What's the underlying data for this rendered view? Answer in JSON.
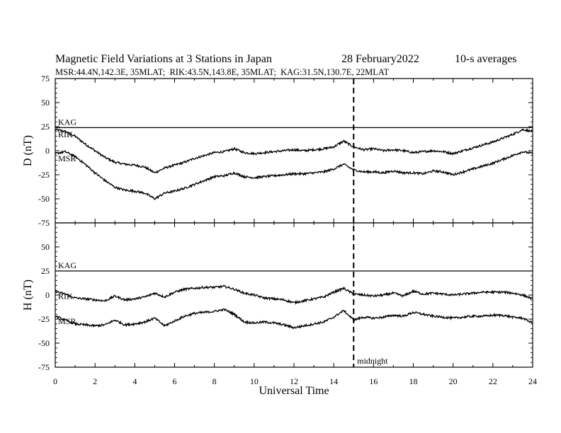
{
  "header": {
    "title": "Magnetic Field Variations at 3 Stations in Japan",
    "date": "28 February2022",
    "averaging": "10-s averages",
    "stations_line": "MSR:44.4N,142.3E, 35MLAT;  RIK:43.5N,143.8E, 35MLAT;  KAG:31.5N,130.7E, 22MLAT"
  },
  "chart_data": [
    {
      "type": "line",
      "panel": "D",
      "ylabel": "D (nT)",
      "ylim": [
        -75,
        75
      ],
      "yticks": [
        "75",
        "50",
        "25",
        "0",
        "-25",
        "-50",
        "-75"
      ],
      "xlim": [
        0,
        24
      ],
      "series": [
        {
          "name": "KAG",
          "x": [
            0,
            24
          ],
          "values": [
            24,
            24
          ]
        },
        {
          "name": "RIK",
          "x": [
            0,
            0.5,
            1,
            1.5,
            2,
            2.5,
            3,
            3.5,
            4,
            4.5,
            5,
            5.5,
            6,
            6.5,
            7,
            7.5,
            8,
            8.5,
            9,
            9.5,
            10,
            10.5,
            11,
            11.5,
            12,
            12.5,
            13,
            13.5,
            14,
            14.5,
            15,
            15.5,
            16,
            16.5,
            17,
            17.5,
            18,
            18.5,
            19,
            19.5,
            20,
            20.5,
            21,
            21.5,
            22,
            22.5,
            23,
            23.5,
            24
          ],
          "values": [
            22,
            20,
            15,
            7,
            0,
            -7,
            -12,
            -14,
            -15,
            -17,
            -23,
            -18,
            -15,
            -12,
            -8,
            -5,
            -2,
            -1,
            2,
            -2,
            -3,
            -2,
            -1,
            0,
            1,
            0,
            1,
            2,
            4,
            10,
            4,
            1,
            2,
            0,
            1,
            0,
            -2,
            -1,
            0,
            -1,
            -3,
            0,
            3,
            6,
            9,
            13,
            17,
            22,
            20
          ]
        },
        {
          "name": "MSR",
          "x": [
            0,
            0.5,
            1,
            1.5,
            2,
            2.5,
            3,
            3.5,
            4,
            4.5,
            5,
            5.5,
            6,
            6.5,
            7,
            7.5,
            8,
            8.5,
            9,
            9.5,
            10,
            10.5,
            11,
            11.5,
            12,
            12.5,
            13,
            13.5,
            14,
            14.5,
            15,
            15.5,
            16,
            16.5,
            17,
            17.5,
            18,
            18.5,
            19,
            19.5,
            20,
            20.5,
            21,
            21.5,
            22,
            22.5,
            23,
            23.5,
            24
          ],
          "values": [
            -3,
            -1,
            -6,
            -14,
            -23,
            -31,
            -38,
            -41,
            -42,
            -44,
            -50,
            -44,
            -42,
            -39,
            -35,
            -31,
            -27,
            -26,
            -23,
            -27,
            -28,
            -27,
            -26,
            -25,
            -24,
            -24,
            -23,
            -22,
            -19,
            -14,
            -20,
            -22,
            -22,
            -23,
            -21,
            -23,
            -23,
            -24,
            -21,
            -22,
            -25,
            -22,
            -19,
            -16,
            -13,
            -9,
            -5,
            -1,
            -3
          ]
        }
      ]
    },
    {
      "type": "line",
      "panel": "H",
      "ylabel": "H (nT)",
      "ylim": [
        -75,
        75
      ],
      "yticks": [
        "75",
        "50",
        "25",
        "0",
        "-25",
        "-50",
        "-75"
      ],
      "xlim": [
        0,
        24
      ],
      "xticks": [
        "0",
        "2",
        "4",
        "6",
        "8",
        "10",
        "12",
        "14",
        "16",
        "18",
        "20",
        "22",
        "24"
      ],
      "xlabel": "Universal Time",
      "annotation": {
        "x": 15,
        "label": "midnight"
      },
      "series": [
        {
          "name": "KAG",
          "x": [
            0,
            24
          ],
          "values": [
            25,
            25
          ]
        },
        {
          "name": "RIK",
          "x": [
            0,
            0.5,
            1,
            1.5,
            2,
            2.5,
            3,
            3.5,
            4,
            4.5,
            5,
            5.5,
            6,
            6.5,
            7,
            7.5,
            8,
            8.5,
            9,
            9.5,
            10,
            10.5,
            11,
            11.5,
            12,
            12.5,
            13,
            13.5,
            14,
            14.5,
            15,
            15.5,
            16,
            16.5,
            17,
            17.5,
            18,
            18.5,
            19,
            19.5,
            20,
            20.5,
            21,
            21.5,
            22,
            22.5,
            23,
            23.5,
            24
          ],
          "values": [
            4,
            1,
            -3,
            -4,
            -5,
            -6,
            -1,
            -5,
            -4,
            -2,
            2,
            -2,
            3,
            6,
            7,
            8,
            8,
            9,
            6,
            2,
            0,
            -3,
            -4,
            -5,
            -8,
            -6,
            -4,
            -2,
            3,
            7,
            1,
            0,
            -1,
            0,
            2,
            -1,
            4,
            1,
            2,
            1,
            0,
            1,
            2,
            3,
            3,
            3,
            2,
            0,
            -4
          ]
        },
        {
          "name": "MSR",
          "x": [
            0,
            0.5,
            1,
            1.5,
            2,
            2.5,
            3,
            3.5,
            4,
            4.5,
            5,
            5.5,
            6,
            6.5,
            7,
            7.5,
            8,
            8.5,
            9,
            9.5,
            10,
            10.5,
            11,
            11.5,
            12,
            12.5,
            13,
            13.5,
            14,
            14.5,
            15,
            15.5,
            16,
            16.5,
            17,
            17.5,
            18,
            18.5,
            19,
            19.5,
            20,
            20.5,
            21,
            21.5,
            22,
            22.5,
            23,
            23.5,
            24
          ],
          "values": [
            -22,
            -26,
            -30,
            -31,
            -32,
            -31,
            -26,
            -31,
            -30,
            -28,
            -24,
            -32,
            -27,
            -22,
            -19,
            -18,
            -17,
            -15,
            -20,
            -28,
            -29,
            -28,
            -29,
            -31,
            -34,
            -32,
            -30,
            -28,
            -23,
            -16,
            -26,
            -23,
            -24,
            -23,
            -21,
            -22,
            -18,
            -20,
            -22,
            -23,
            -24,
            -23,
            -22,
            -22,
            -21,
            -21,
            -23,
            -24,
            -29
          ]
        }
      ]
    }
  ]
}
